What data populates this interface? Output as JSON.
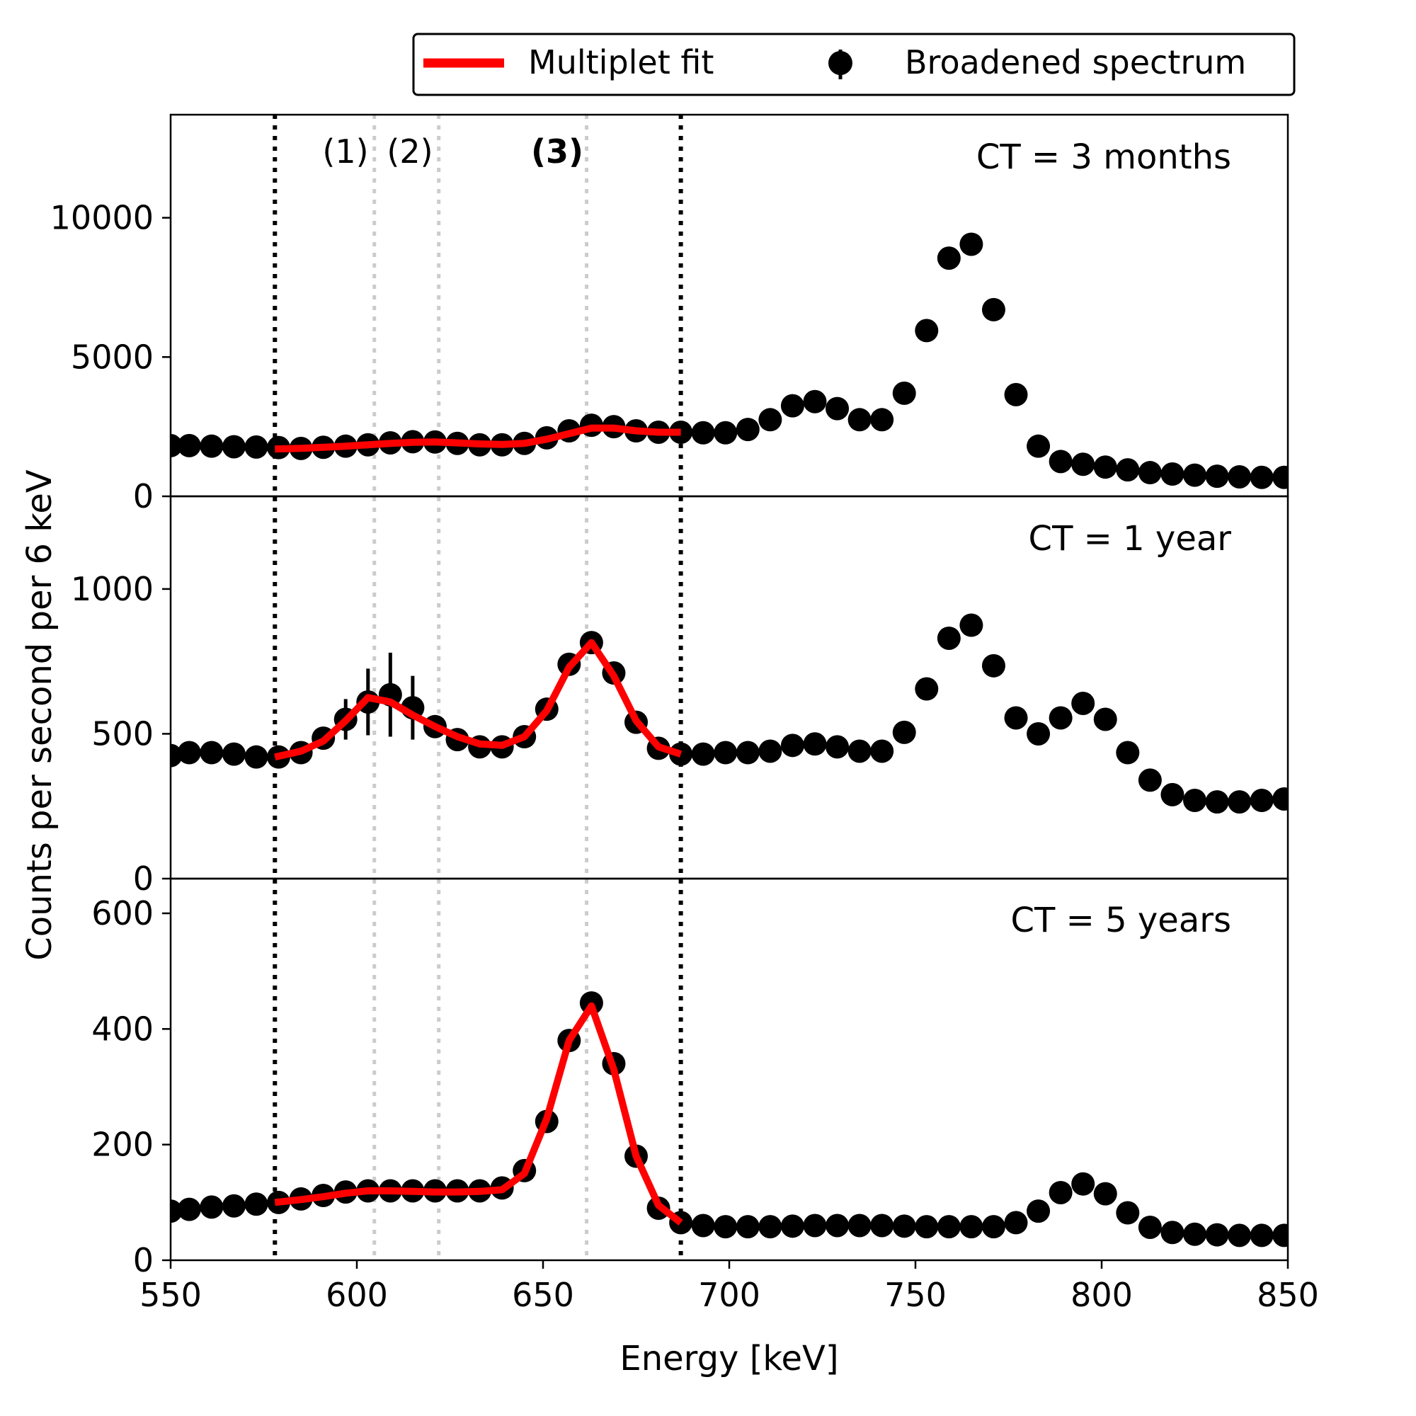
{
  "chart_data": {
    "type": "scatter",
    "xlabel": "Energy [keV]",
    "ylabel": "Counts per second per 6 keV",
    "xlim": [
      550,
      850
    ],
    "x_ticks": [
      550,
      600,
      650,
      700,
      750,
      800,
      850
    ],
    "grid": false,
    "legend": {
      "placement": "top-right",
      "entries": [
        "Multiplet fit",
        "Broadened spectrum"
      ],
      "fit_color": "#ff0000",
      "data_color": "#000000"
    },
    "window_lines": [
      578,
      687
    ],
    "peak_lines": [
      {
        "x": 604.7,
        "label": "(1)"
      },
      {
        "x": 622,
        "label": "(2)"
      },
      {
        "x": 661.7,
        "label": "(3)"
      }
    ],
    "panels": [
      {
        "annotation": "CT = 3 months",
        "ylim": [
          0,
          13700
        ],
        "y_ticks": [
          0,
          5000,
          10000
        ],
        "x": [
          550,
          555,
          561,
          567,
          573,
          579,
          585,
          591,
          597,
          603,
          609,
          615,
          621,
          627,
          633,
          639,
          645,
          651,
          657,
          663,
          669,
          675,
          681,
          687,
          693,
          699,
          705,
          711,
          717,
          723,
          729,
          735,
          741,
          747,
          753,
          759,
          765,
          771,
          777,
          783,
          789,
          795,
          801,
          807,
          813,
          819,
          825,
          831,
          837,
          843,
          849
        ],
        "y": [
          1820,
          1820,
          1800,
          1780,
          1770,
          1750,
          1720,
          1760,
          1800,
          1850,
          1920,
          1960,
          1950,
          1900,
          1850,
          1850,
          1900,
          2100,
          2350,
          2550,
          2500,
          2350,
          2300,
          2300,
          2280,
          2280,
          2400,
          2750,
          3250,
          3400,
          3150,
          2750,
          2750,
          3700,
          5950,
          8550,
          9050,
          6700,
          3650,
          1800,
          1250,
          1150,
          1050,
          950,
          850,
          800,
          760,
          720,
          700,
          680,
          680
        ],
        "error_bars": [],
        "fit": {
          "x": [
            578,
            585,
            591,
            597,
            603,
            609,
            615,
            621,
            627,
            633,
            639,
            645,
            651,
            657,
            663,
            669,
            675,
            681,
            687
          ],
          "y": [
            1700,
            1720,
            1760,
            1800,
            1850,
            1900,
            1940,
            1950,
            1920,
            1880,
            1860,
            1900,
            2050,
            2250,
            2450,
            2450,
            2350,
            2300,
            2300
          ]
        }
      },
      {
        "annotation": "CT = 1 year",
        "ylim": [
          0,
          1320
        ],
        "y_ticks": [
          0,
          500,
          1000
        ],
        "x": [
          550,
          555,
          561,
          567,
          573,
          579,
          585,
          591,
          597,
          603,
          609,
          615,
          621,
          627,
          633,
          639,
          645,
          651,
          657,
          663,
          669,
          675,
          681,
          687,
          693,
          699,
          705,
          711,
          717,
          723,
          729,
          735,
          741,
          747,
          753,
          759,
          765,
          771,
          777,
          783,
          789,
          795,
          801,
          807,
          813,
          819,
          825,
          831,
          837,
          843,
          849
        ],
        "y": [
          425,
          435,
          435,
          430,
          420,
          420,
          435,
          485,
          550,
          610,
          635,
          590,
          525,
          480,
          455,
          455,
          490,
          585,
          740,
          815,
          710,
          540,
          450,
          430,
          430,
          435,
          435,
          440,
          460,
          465,
          455,
          440,
          440,
          505,
          655,
          830,
          875,
          735,
          555,
          500,
          555,
          605,
          550,
          435,
          340,
          290,
          270,
          265,
          265,
          270,
          275
        ],
        "error_bars": [
          {
            "x": 591,
            "y": 485,
            "err": 25
          },
          {
            "x": 597,
            "y": 550,
            "err": 70
          },
          {
            "x": 603,
            "y": 610,
            "err": 115
          },
          {
            "x": 609,
            "y": 635,
            "err": 145
          },
          {
            "x": 615,
            "y": 590,
            "err": 110
          },
          {
            "x": 621,
            "y": 525,
            "err": 35
          }
        ],
        "fit": {
          "x": [
            578,
            585,
            591,
            597,
            603,
            609,
            615,
            621,
            627,
            633,
            639,
            645,
            651,
            657,
            663,
            669,
            675,
            681,
            687
          ],
          "y": [
            420,
            440,
            475,
            545,
            625,
            610,
            565,
            525,
            490,
            465,
            460,
            490,
            580,
            730,
            815,
            700,
            545,
            455,
            430
          ]
        }
      },
      {
        "annotation": "CT = 5 years",
        "ylim": [
          0,
          660
        ],
        "y_ticks": [
          0,
          200,
          400,
          600
        ],
        "x": [
          550,
          555,
          561,
          567,
          573,
          579,
          585,
          591,
          597,
          603,
          609,
          615,
          621,
          627,
          633,
          639,
          645,
          651,
          657,
          663,
          669,
          675,
          681,
          687,
          693,
          699,
          705,
          711,
          717,
          723,
          729,
          735,
          741,
          747,
          753,
          759,
          765,
          771,
          777,
          783,
          789,
          795,
          801,
          807,
          813,
          819,
          825,
          831,
          837,
          843,
          849
        ],
        "y": [
          85,
          88,
          92,
          94,
          97,
          100,
          106,
          112,
          118,
          120,
          120,
          120,
          120,
          120,
          120,
          125,
          155,
          240,
          380,
          445,
          340,
          180,
          90,
          65,
          60,
          58,
          58,
          58,
          59,
          60,
          60,
          60,
          60,
          59,
          58,
          58,
          58,
          58,
          65,
          85,
          117,
          132,
          115,
          82,
          57,
          48,
          45,
          44,
          43,
          43,
          43
        ],
        "error_bars": [],
        "fit": {
          "x": [
            578,
            585,
            591,
            597,
            603,
            609,
            615,
            621,
            627,
            633,
            639,
            645,
            651,
            657,
            663,
            669,
            675,
            681,
            687
          ],
          "y": [
            100,
            105,
            110,
            116,
            120,
            120,
            119,
            118,
            118,
            119,
            122,
            150,
            245,
            380,
            440,
            330,
            180,
            95,
            65
          ]
        }
      }
    ]
  }
}
